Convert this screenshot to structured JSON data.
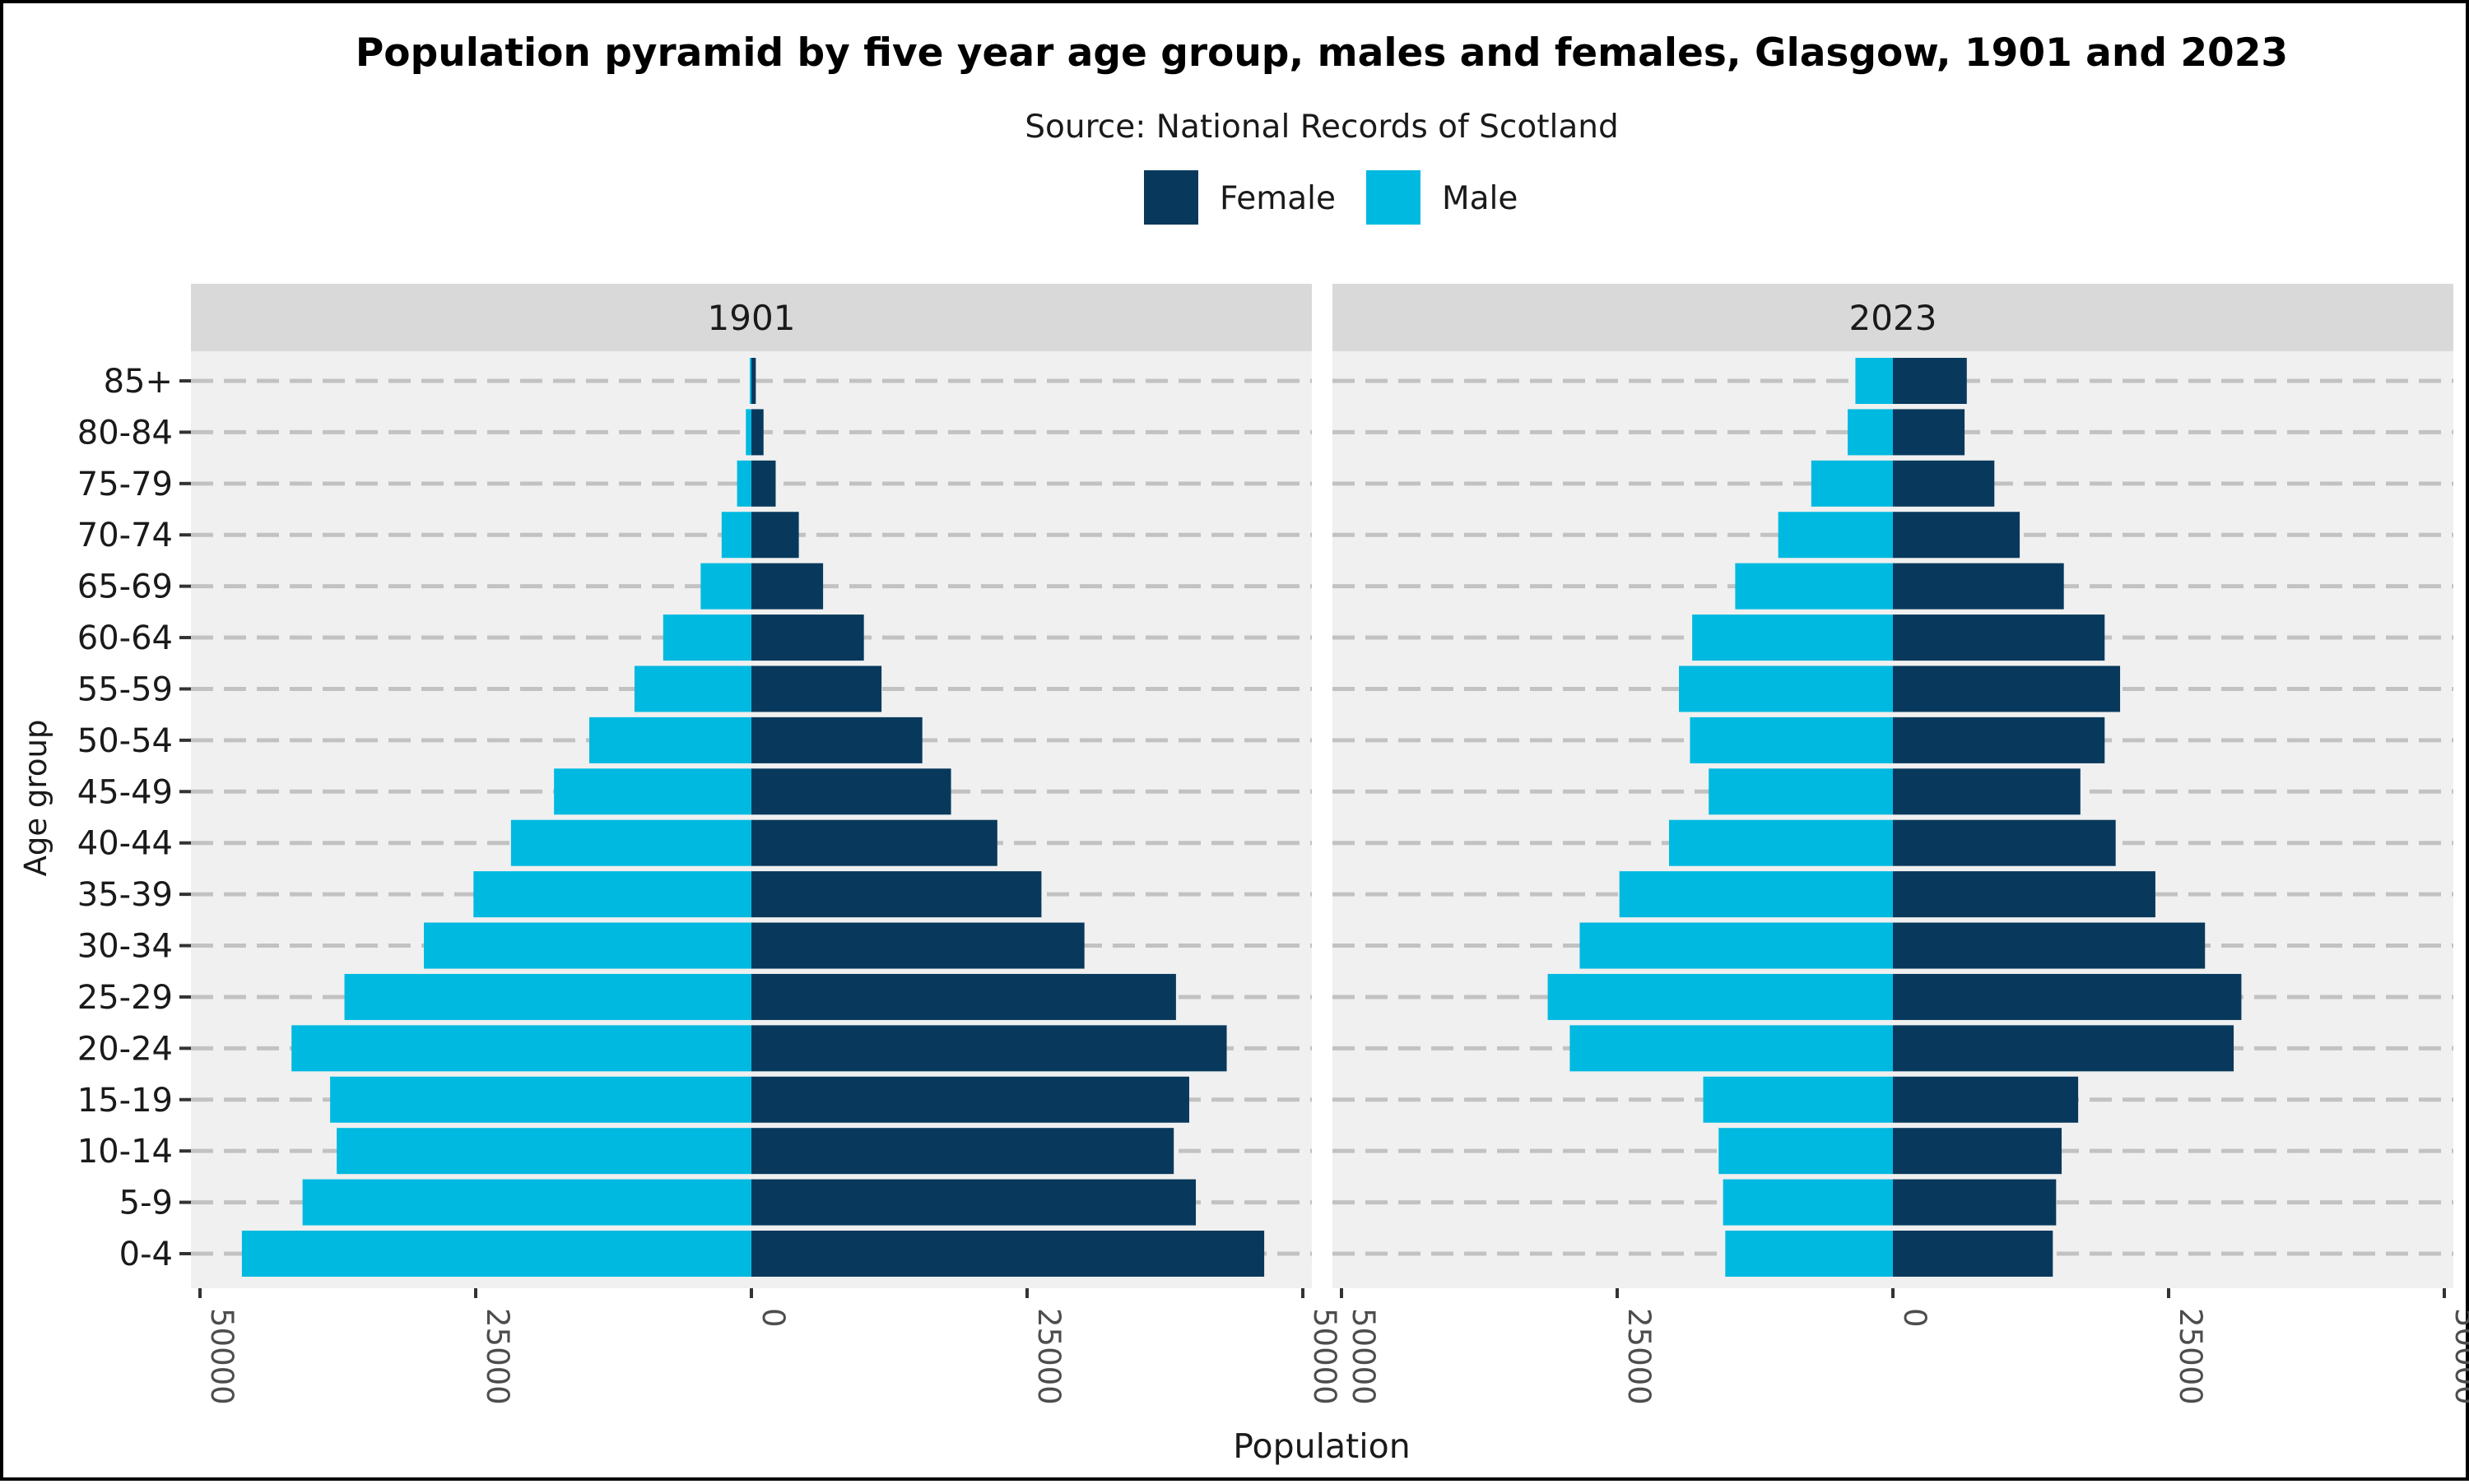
{
  "chart_data": {
    "type": "bar",
    "orientation": "horizontal",
    "subtype": "population-pyramid",
    "title": "Population pyramid by five year age group, males and females, Glasgow, 1901 and 2023",
    "subtitle": "Source: National Records of Scotland",
    "xlabel": "Population",
    "ylabel": "Age group",
    "legend": {
      "placement": "top-center",
      "items": [
        {
          "name": "Female",
          "color": "#08395C"
        },
        {
          "name": "Male",
          "color": "#00B9E0"
        }
      ]
    },
    "categories": [
      "0-4",
      "5-9",
      "10-14",
      "15-19",
      "20-24",
      "25-29",
      "30-34",
      "35-39",
      "40-44",
      "45-49",
      "50-54",
      "55-59",
      "60-64",
      "65-69",
      "70-74",
      "75-79",
      "80-84",
      "85+"
    ],
    "xlim": [
      -50000,
      50000
    ],
    "xticks": [
      -50000,
      -25000,
      0,
      25000,
      50000
    ],
    "xtick_labels": [
      "50000",
      "25000",
      "0",
      "25000",
      "50000"
    ],
    "grid": "horizontal dashed",
    "panels": [
      {
        "label": "1901",
        "series": [
          {
            "name": "Female",
            "values": [
              46500,
              40300,
              38300,
              39700,
              43100,
              38500,
              30200,
              26300,
              22300,
              18100,
              15500,
              11800,
              10200,
              6500,
              4300,
              2200,
              1100,
              400
            ]
          },
          {
            "name": "Male",
            "values": [
              46200,
              40700,
              37600,
              38200,
              41700,
              36900,
              29700,
              25200,
              21800,
              17900,
              14700,
              10600,
              8000,
              4600,
              2700,
              1300,
              500,
              150
            ]
          }
        ]
      },
      {
        "label": "2023",
        "series": [
          {
            "name": "Female",
            "values": [
              14500,
              14800,
              15300,
              16800,
              30900,
              31600,
              28300,
              23800,
              20200,
              17000,
              19200,
              20600,
              19200,
              15500,
              11500,
              9200,
              6500,
              6700
            ]
          },
          {
            "name": "Male",
            "values": [
              15200,
              15400,
              15800,
              17200,
              29300,
              31300,
              28400,
              24800,
              20300,
              16700,
              18400,
              19400,
              18200,
              14300,
              10400,
              7400,
              4100,
              3400
            ]
          }
        ]
      }
    ]
  }
}
